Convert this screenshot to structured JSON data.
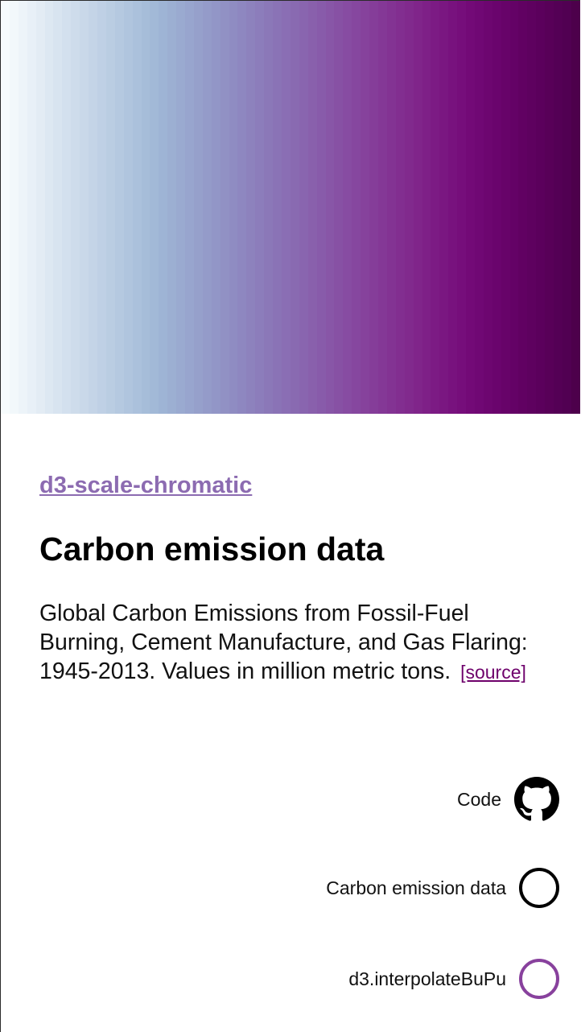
{
  "scheme": {
    "name": "BuPu",
    "stripe_colors": [
      "#f7fcfd",
      "#f2f8fb",
      "#edf4f9",
      "#e8f0f7",
      "#e3ecf4",
      "#dde8f2",
      "#d8e4f0",
      "#d3e0ee",
      "#cedceb",
      "#c9d8e9",
      "#c4d4e7",
      "#bfd0e5",
      "#bacde2",
      "#b5c9e0",
      "#b0c5de",
      "#abc1dc",
      "#a6bdd9",
      "#a2b9d7",
      "#9eb4d5",
      "#9cafd2",
      "#9aaad0",
      "#98a5ce",
      "#96a0cb",
      "#949bc9",
      "#9296c7",
      "#9191c4",
      "#8f8cc2",
      "#8e87c0",
      "#8d82bd",
      "#8c7dbb",
      "#8b78b8",
      "#8a73b6",
      "#8a6eb4",
      "#896ab1",
      "#8965af",
      "#8960ac",
      "#885baa",
      "#8856a7",
      "#8751a4",
      "#874ca2",
      "#86479f",
      "#86429c",
      "#853d99",
      "#843896",
      "#833393",
      "#822e90",
      "#812a8d",
      "#80258a",
      "#7e2087",
      "#7c1b84",
      "#7a1781",
      "#78127e",
      "#760e7b",
      "#730a77",
      "#700874",
      "#6d0670",
      "#6a046d",
      "#670369",
      "#640266",
      "#610162",
      "#5e015f",
      "#5b005c",
      "#580058",
      "#540055",
      "#510052",
      "#4d004b"
    ]
  },
  "header": {
    "library_link": "d3-scale-chromatic",
    "title": "Carbon emission data",
    "description": "Global Carbon Emissions from Fossil-Fuel Burning, Cement Manufacture, and Gas Flaring: 1945-2013. Values in million metric tons.",
    "source_link": "[source]"
  },
  "actions": {
    "code_label": "Code",
    "code_icon": "github-icon",
    "dataset_label": "Carbon emission data",
    "dataset_ring_color": "#000000",
    "interpolator_label": "d3.interpolateBuPu",
    "interpolator_ring_color": "#88419d"
  },
  "colors": {
    "link": "#8c6bb1",
    "source_link": "#6e016b"
  }
}
